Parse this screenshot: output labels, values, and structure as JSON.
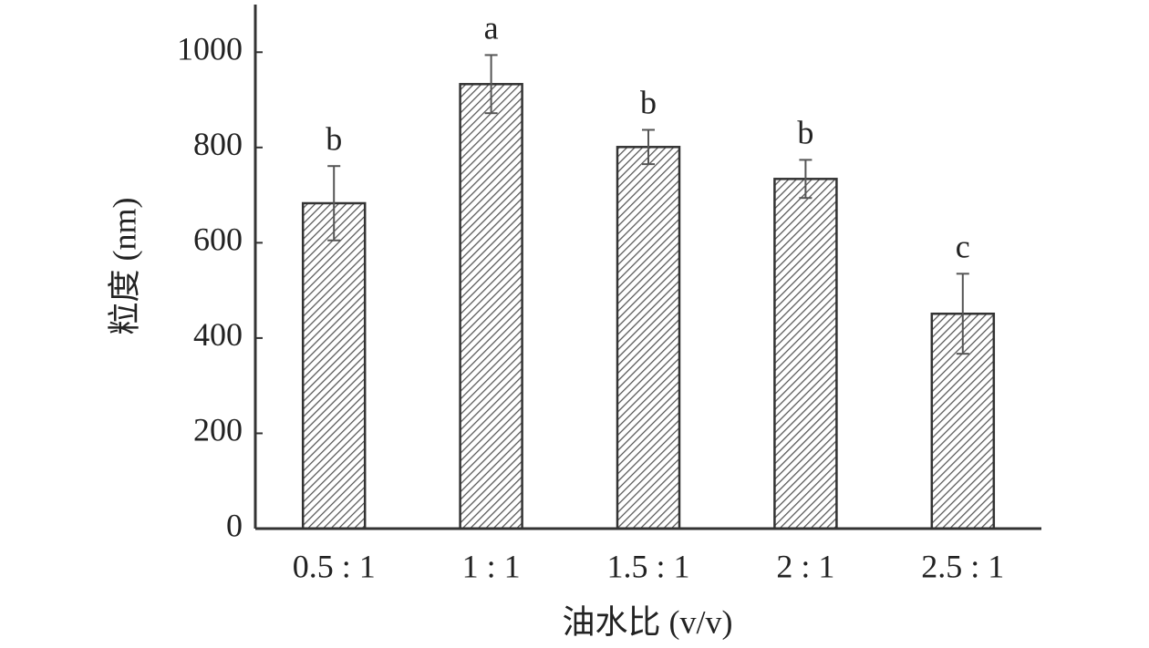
{
  "chart_data": {
    "type": "bar",
    "x_label": "油水比 (v/v)",
    "y_label": "粒度 (nm)",
    "categories": [
      "0.5 : 1",
      "1 : 1",
      "1.5 : 1",
      "2 : 1",
      "2.5 : 1"
    ],
    "values": [
      683,
      933,
      801,
      734,
      451
    ],
    "errors": [
      78,
      61,
      36,
      40,
      84
    ],
    "annotations": [
      "b",
      "a",
      "b",
      "b",
      "c"
    ],
    "color": "#555555",
    "ylim": [
      0,
      1100
    ],
    "yticks": [
      0,
      200,
      400,
      600,
      800,
      1000
    ]
  }
}
